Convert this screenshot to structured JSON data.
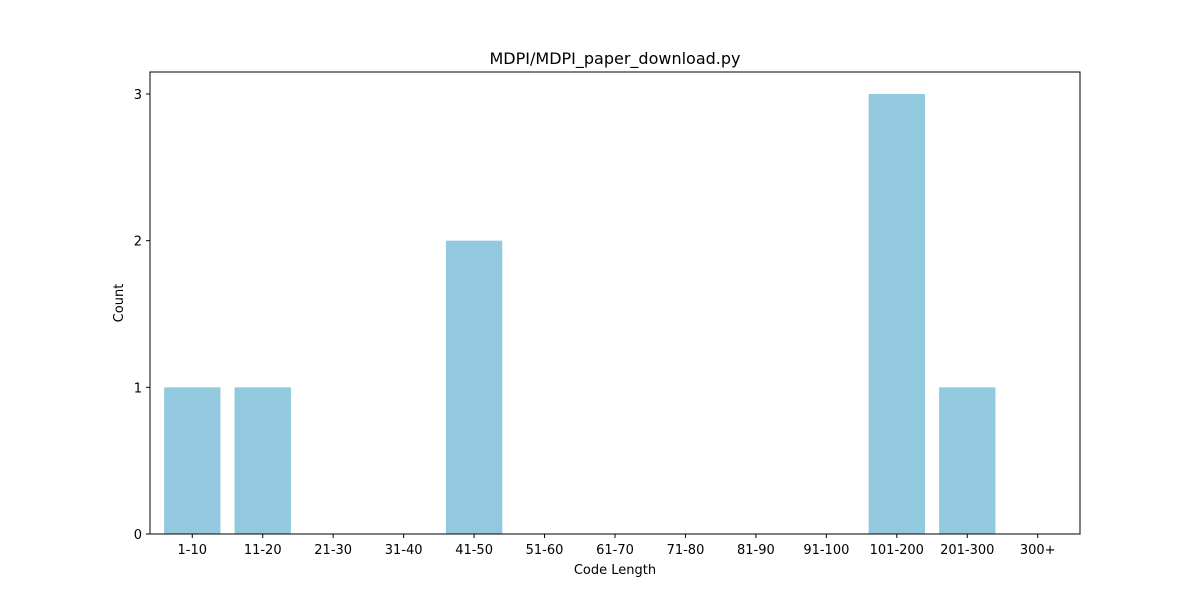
{
  "chart_data": {
    "type": "bar",
    "title": "MDPI/MDPI_paper_download.py",
    "xlabel": "Code Length",
    "ylabel": "Count",
    "categories": [
      "1-10",
      "11-20",
      "21-30",
      "31-40",
      "41-50",
      "51-60",
      "61-70",
      "71-80",
      "81-90",
      "91-100",
      "101-200",
      "201-300",
      "300+"
    ],
    "values": [
      1,
      1,
      0,
      0,
      2,
      0,
      0,
      0,
      0,
      0,
      3,
      1,
      0
    ],
    "yticks": [
      0,
      1,
      2,
      3
    ],
    "ylim": [
      0,
      3.15
    ],
    "grid": false,
    "legend": "none",
    "bar_color": "#92c9de"
  }
}
